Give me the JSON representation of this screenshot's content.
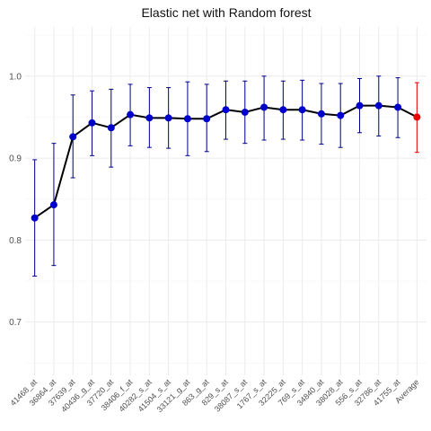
{
  "chart_data": {
    "type": "line",
    "title": "Elastic net with Random forest",
    "xlabel": "",
    "ylabel": "",
    "ylim": [
      0.635,
      1.06
    ],
    "yticks": [
      0.7,
      0.8,
      0.9,
      1.0
    ],
    "ytick_labels": [
      "0.7",
      "0.8",
      "0.9",
      "1.0"
    ],
    "grid": true,
    "legend": "none",
    "categories": [
      "41468_at",
      "36864_at",
      "37639_at",
      "40436_g_at",
      "37720_at",
      "38406_f_at",
      "40282_s_at",
      "41504_s_at",
      "33121_g_at",
      "863_g_at",
      "829_s_at",
      "38087_s_at",
      "1767_s_at",
      "32225_at",
      "769_s_at",
      "34840_at",
      "38028_at",
      "556_s_at",
      "32786_at",
      "41755_at",
      "Average"
    ],
    "series": [
      {
        "values": [
          0.827,
          0.843,
          0.926,
          0.943,
          0.937,
          0.953,
          0.949,
          0.949,
          0.948,
          0.948,
          0.959,
          0.956,
          0.962,
          0.959,
          0.959,
          0.954,
          0.952,
          0.964,
          0.964,
          0.962,
          0.95
        ],
        "lower": [
          0.756,
          0.769,
          0.876,
          0.903,
          0.889,
          0.915,
          0.913,
          0.912,
          0.903,
          0.908,
          0.923,
          0.918,
          0.922,
          0.923,
          0.922,
          0.917,
          0.913,
          0.931,
          0.927,
          0.925,
          0.907
        ],
        "upper": [
          0.898,
          0.918,
          0.977,
          0.982,
          0.984,
          0.99,
          0.986,
          0.986,
          0.993,
          0.99,
          0.994,
          0.994,
          1.0,
          0.994,
          0.995,
          0.991,
          0.991,
          0.997,
          1.0,
          0.998,
          0.992
        ]
      }
    ],
    "colors": {
      "line": "#000000",
      "point": "#0000cc",
      "errorbar": "#00008b",
      "average_point": "#ee0000",
      "average_errorbar": "#dd0000"
    }
  }
}
